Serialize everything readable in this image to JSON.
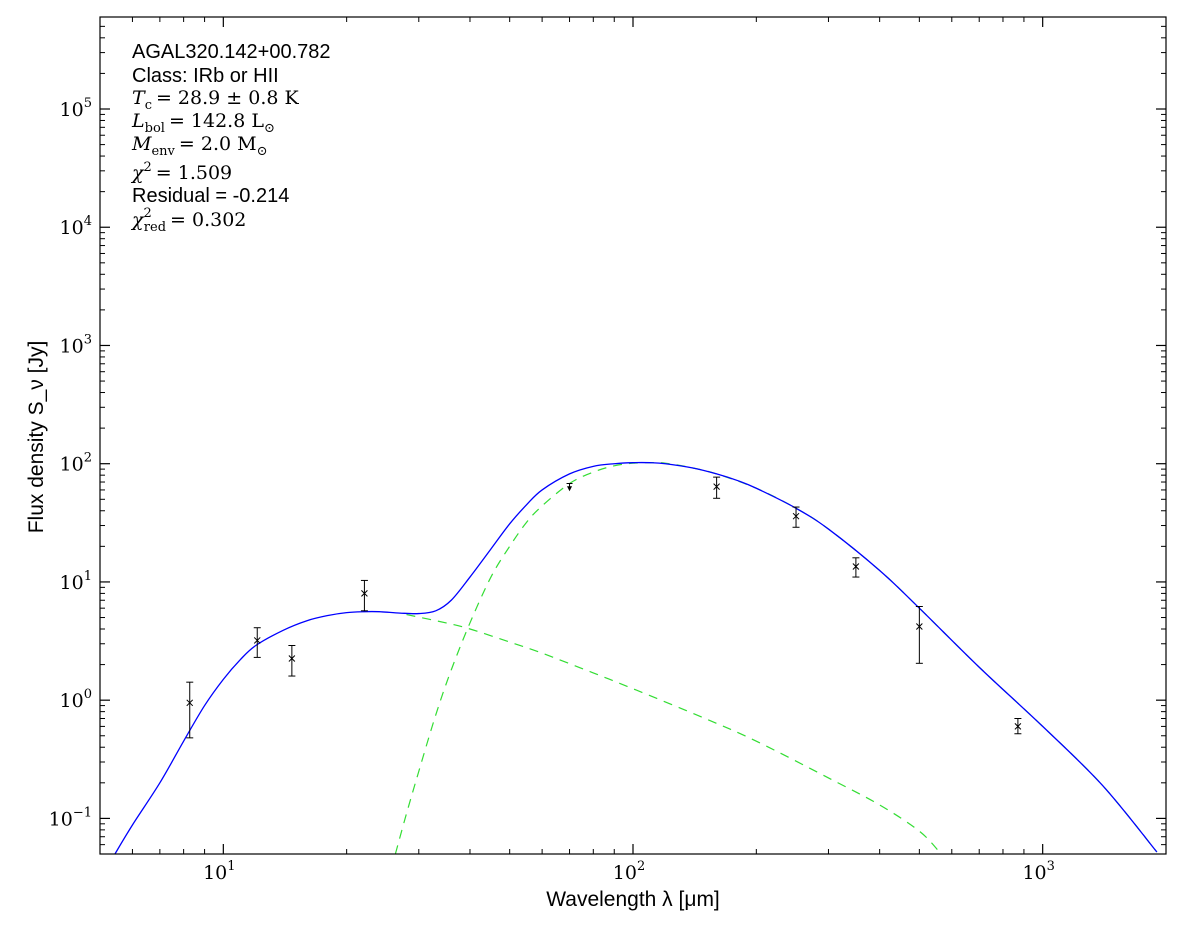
{
  "chart_data": {
    "type": "scatter",
    "x_scale": "log",
    "y_scale": "log",
    "xlim": [
      5,
      2000
    ],
    "ylim": [
      0.05,
      600000
    ],
    "xlabel": "Wavelength λ [μm]",
    "ylabel": "Flux density S_ν [Jy]",
    "x_ticks": [
      {
        "base": "10",
        "exp": "1",
        "value": 10
      },
      {
        "base": "10",
        "exp": "2",
        "value": 100
      },
      {
        "base": "10",
        "exp": "3",
        "value": 1000
      }
    ],
    "y_ticks": [
      {
        "base": "10",
        "exp": "−1",
        "value": 0.1
      },
      {
        "base": "10",
        "exp": "0",
        "value": 1
      },
      {
        "base": "10",
        "exp": "1",
        "value": 10
      },
      {
        "base": "10",
        "exp": "2",
        "value": 100
      },
      {
        "base": "10",
        "exp": "3",
        "value": 1000
      },
      {
        "base": "10",
        "exp": "4",
        "value": 10000
      },
      {
        "base": "10",
        "exp": "5",
        "value": 100000
      }
    ],
    "annotations": {
      "source": "AGAL320.142+00.782",
      "class_label": "Class: IRb or HII",
      "tc_sym": "T",
      "tc_sub": "c",
      "tc_val": "= 28.9 ± 0.8 K",
      "lbol_sym": "L",
      "lbol_sub": "bol",
      "lbol_val": "= 142.8 L",
      "lbol_unit_sub": "⊙",
      "menv_sym": "M",
      "menv_sub": "env",
      "menv_val": "= 2.0 M",
      "menv_unit_sub": "⊙",
      "chi2_sym": "χ",
      "chi2_sup": "2",
      "chi2_val": "= 1.509",
      "residual": "Residual = -0.214",
      "chi2red_sym": "χ",
      "chi2red_sup": "2",
      "chi2red_sub": "red",
      "chi2red_val": "= 0.302"
    },
    "points": [
      {
        "x": 8.28,
        "y": 0.95,
        "lo": 0.48,
        "hi": 1.42,
        "upper_limit": false
      },
      {
        "x": 12.1,
        "y": 3.2,
        "lo": 2.3,
        "hi": 4.1,
        "upper_limit": false
      },
      {
        "x": 14.7,
        "y": 2.25,
        "lo": 1.6,
        "hi": 2.9,
        "upper_limit": false
      },
      {
        "x": 22.1,
        "y": 8.0,
        "lo": 5.7,
        "hi": 10.3,
        "upper_limit": false
      },
      {
        "x": 70,
        "y": 62,
        "lo": 57,
        "hi": 68,
        "upper_limit": true
      },
      {
        "x": 160,
        "y": 64,
        "lo": 51,
        "hi": 77,
        "upper_limit": false
      },
      {
        "x": 250,
        "y": 36,
        "lo": 29,
        "hi": 43,
        "upper_limit": false
      },
      {
        "x": 350,
        "y": 13.5,
        "lo": 11,
        "hi": 16,
        "upper_limit": false
      },
      {
        "x": 500,
        "y": 4.2,
        "lo": 2.05,
        "hi": 6.2,
        "upper_limit": false
      },
      {
        "x": 870,
        "y": 0.6,
        "lo": 0.52,
        "hi": 0.7,
        "upper_limit": false
      }
    ],
    "series": [
      {
        "style": "solid",
        "color": "#0000ff",
        "x": [
          5.4,
          6,
          7,
          8,
          9,
          10,
          11,
          12,
          14,
          16,
          18,
          20,
          22,
          24,
          27,
          30,
          33,
          36,
          40,
          45,
          50,
          55,
          60,
          70,
          80,
          90,
          100,
          110,
          120,
          140,
          160,
          180,
          200,
          250,
          300,
          400,
          500,
          700,
          1000,
          1400,
          1900
        ],
        "y": [
          0.048,
          0.088,
          0.2,
          0.45,
          0.9,
          1.5,
          2.2,
          2.9,
          3.9,
          4.7,
          5.2,
          5.5,
          5.6,
          5.6,
          5.45,
          5.4,
          5.7,
          7.0,
          11,
          19,
          31,
          45,
          60,
          82,
          95,
          100,
          102,
          102,
          100,
          92,
          82,
          72,
          62,
          42,
          28,
          12.5,
          6.0,
          1.9,
          0.6,
          0.19,
          0.052
        ]
      },
      {
        "style": "dashed",
        "color": "#33dd33",
        "x": [
          28,
          35,
          40,
          50,
          60,
          80,
          100,
          150,
          200,
          300,
          400,
          500,
          560
        ],
        "y": [
          5.3,
          4.5,
          4.0,
          3.1,
          2.5,
          1.7,
          1.25,
          0.7,
          0.45,
          0.22,
          0.13,
          0.078,
          0.052
        ]
      },
      {
        "style": "dashed",
        "color": "#33dd33",
        "x": [
          26.3,
          28,
          30,
          33,
          36,
          40,
          45,
          50,
          55,
          60,
          70,
          80,
          90,
          100,
          110,
          120,
          140,
          160,
          200,
          250,
          300,
          400,
          500,
          700,
          1000,
          1400,
          1900
        ],
        "y": [
          0.05,
          0.11,
          0.25,
          0.75,
          1.8,
          4.5,
          11,
          20,
          32,
          44,
          68,
          85,
          96,
          101,
          102,
          101,
          92,
          82,
          62,
          42,
          28,
          12.5,
          6.0,
          1.9,
          0.6,
          0.19,
          0.052
        ]
      }
    ]
  }
}
